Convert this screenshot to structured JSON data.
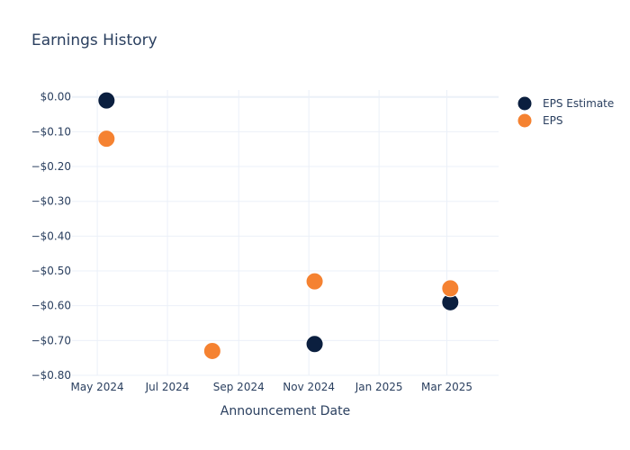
{
  "chart_data": {
    "type": "scatter",
    "title": "Earnings History",
    "xlabel": "Announcement Date",
    "ylabel": "",
    "x_type": "date",
    "xlim": [
      "2024-04-09",
      "2025-04-15"
    ],
    "ylim": [
      -0.8,
      0.02
    ],
    "x_ticks": [
      {
        "date": "2024-05-01",
        "label": "May 2024"
      },
      {
        "date": "2024-07-01",
        "label": "Jul 2024"
      },
      {
        "date": "2024-09-01",
        "label": "Sep 2024"
      },
      {
        "date": "2024-11-01",
        "label": "Nov 2024"
      },
      {
        "date": "2025-01-01",
        "label": "Jan 2025"
      },
      {
        "date": "2025-03-01",
        "label": "Mar 2025"
      }
    ],
    "y_ticks": [
      {
        "value": 0.0,
        "label": "$0.00"
      },
      {
        "value": -0.1,
        "label": "−$0.10"
      },
      {
        "value": -0.2,
        "label": "−$0.20"
      },
      {
        "value": -0.3,
        "label": "−$0.30"
      },
      {
        "value": -0.4,
        "label": "−$0.40"
      },
      {
        "value": -0.5,
        "label": "−$0.50"
      },
      {
        "value": -0.6,
        "label": "−$0.60"
      },
      {
        "value": -0.7,
        "label": "−$0.70"
      },
      {
        "value": -0.8,
        "label": "−$0.80"
      }
    ],
    "grid": true,
    "legend_position": "top-right",
    "series": [
      {
        "name": "EPS Estimate",
        "color": "#0b1f3f",
        "points": [
          {
            "x": "2024-05-09",
            "y": -0.01
          },
          {
            "x": "2024-08-09",
            "y": -0.73
          },
          {
            "x": "2024-11-06",
            "y": -0.71
          },
          {
            "x": "2025-03-04",
            "y": -0.59
          }
        ]
      },
      {
        "name": "EPS",
        "color": "#f58231",
        "points": [
          {
            "x": "2024-05-09",
            "y": -0.12
          },
          {
            "x": "2024-08-09",
            "y": -0.73
          },
          {
            "x": "2024-11-06",
            "y": -0.53
          },
          {
            "x": "2025-03-04",
            "y": -0.55
          }
        ]
      }
    ]
  }
}
